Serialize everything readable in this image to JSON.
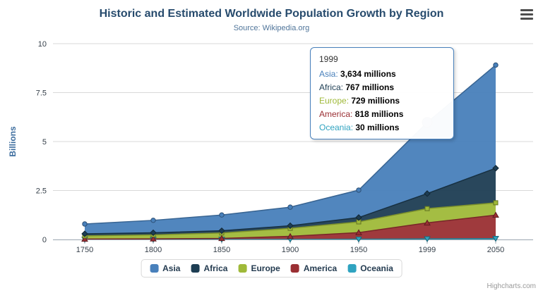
{
  "header": {
    "title": "Historic and Estimated Worldwide Population Growth by Region",
    "subtitle": "Source: Wikipedia.org"
  },
  "chart_data": {
    "type": "area",
    "stacking": "normal",
    "title": "Historic and Estimated Worldwide Population Growth by Region",
    "subtitle": "Source: Wikipedia.org",
    "categories": [
      "1750",
      "1800",
      "1850",
      "1900",
      "1950",
      "1999",
      "2050"
    ],
    "unit": "millions",
    "ylabel": "Billions",
    "ylim": [
      0,
      10
    ],
    "yticks": [
      0,
      2.5,
      5,
      7.5,
      10
    ],
    "grid": true,
    "legend_position": "bottom",
    "series": [
      {
        "name": "Asia",
        "color": "#4880bb",
        "marker": "circle",
        "values": [
          502,
          635,
          809,
          947,
          1402,
          3634,
          5268
        ]
      },
      {
        "name": "Africa",
        "color": "#1d3d53",
        "marker": "diamond",
        "values": [
          106,
          107,
          111,
          133,
          221,
          767,
          1766
        ]
      },
      {
        "name": "Europe",
        "color": "#9fb939",
        "marker": "square",
        "values": [
          163,
          203,
          276,
          408,
          547,
          729,
          628
        ]
      },
      {
        "name": "America",
        "color": "#9a2f33",
        "marker": "triangle",
        "values": [
          18,
          31,
          54,
          156,
          339,
          818,
          1201
        ]
      },
      {
        "name": "Oceania",
        "color": "#2fa3c0",
        "marker": "triangle-down",
        "values": [
          2,
          2,
          2,
          6,
          13,
          30,
          46
        ]
      }
    ],
    "hover_point": {
      "series": "Asia",
      "category": "1999"
    }
  },
  "tooltip": {
    "x": "1999",
    "rows": [
      {
        "name": "Asia",
        "value": "3,634 millions"
      },
      {
        "name": "Africa",
        "value": "767 millions"
      },
      {
        "name": "Europe",
        "value": "729 millions"
      },
      {
        "name": "America",
        "value": "818 millions"
      },
      {
        "name": "Oceania",
        "value": "30 millions"
      }
    ]
  },
  "credits": "Highcharts.com"
}
